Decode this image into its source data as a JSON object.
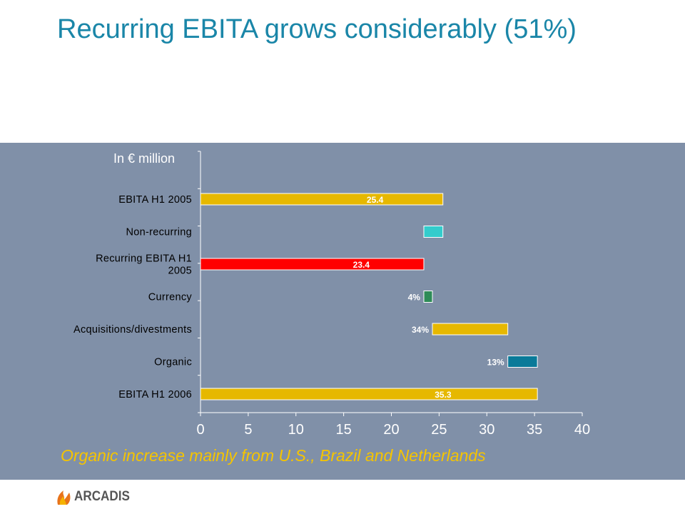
{
  "slide": {
    "title": "Recurring EBITA grows considerably (51%)",
    "footnote": "Organic increase mainly from U.S., Brazil and Netherlands",
    "unit_label": "In € million",
    "logo_text": "ARCADIS"
  },
  "colors": {
    "title": "#1a86a8",
    "panel": "#8090a8",
    "footnote": "#f5c400",
    "gold": "#e6b800",
    "cyan": "#33cccc",
    "red": "#ff0000",
    "green": "#2e8b57",
    "teal": "#0a7a99"
  },
  "chart_data": {
    "type": "bar",
    "orientation": "horizontal",
    "subtype": "waterfall",
    "categories": [
      "EBITA H1 2005",
      "Non-recurring",
      "Recurring EBITA H1 2005",
      "Currency",
      "Acquisitions/divestments",
      "Organic",
      "EBITA H1 2006"
    ],
    "bars": [
      {
        "start": 0,
        "end": 25.4,
        "label": "25.4",
        "color": "#e6b800"
      },
      {
        "start": 23.4,
        "end": 25.4,
        "label": "",
        "color": "#33cccc"
      },
      {
        "start": 0,
        "end": 23.4,
        "label": "23.4",
        "color": "#ff0000"
      },
      {
        "start": 23.4,
        "end": 24.3,
        "label": "4%",
        "color": "#2e8b57"
      },
      {
        "start": 24.3,
        "end": 32.2,
        "label": "34%",
        "color": "#e6b800"
      },
      {
        "start": 32.2,
        "end": 35.3,
        "label": "13%",
        "color": "#0a7a99"
      },
      {
        "start": 0,
        "end": 35.3,
        "label": "35.3",
        "color": "#e6b800"
      }
    ],
    "category_label_lines": [
      [
        "EBITA H1 2005"
      ],
      [
        "Non-recurring"
      ],
      [
        "Recurring EBITA H1",
        "2005"
      ],
      [
        "Currency"
      ],
      [
        "Acquisitions/divestments"
      ],
      [
        "Organic"
      ],
      [
        "EBITA H1 2006"
      ]
    ],
    "xlim": [
      0,
      40
    ],
    "xticks": [
      "0",
      "5",
      "10",
      "15",
      "20",
      "25",
      "30",
      "35",
      "40"
    ],
    "title": "",
    "xlabel": "",
    "ylabel": "In € million",
    "grid": false
  }
}
